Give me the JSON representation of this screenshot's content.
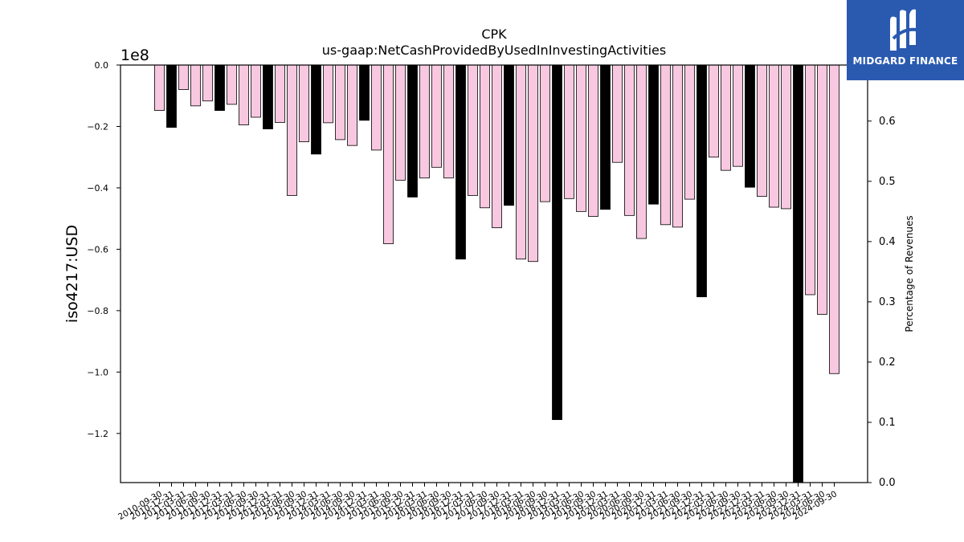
{
  "chart_data": {
    "type": "bar",
    "title": "CPK",
    "subtitle": "us-gaap:NetCashProvidedByUsedInInvestingActivities",
    "ylabel": "iso4217:USD",
    "y_offset_label": "1e8",
    "y2label": "Percentage of Revenues",
    "ylim": [
      -1.36,
      0.0
    ],
    "y2lim": [
      0.0,
      0.693
    ],
    "yticks": [
      "0.0",
      "−0.2",
      "−0.4",
      "−0.6",
      "−0.8",
      "−1.0",
      "−1.2"
    ],
    "y2ticks": [
      "0.0",
      "0.1",
      "0.2",
      "0.3",
      "0.4",
      "0.5",
      "0.6"
    ],
    "grid": false,
    "categories": [
      "2010-09-30",
      "2010-12-31",
      "2011-03-31",
      "2011-06-30",
      "2011-09-30",
      "2011-12-31",
      "2012-03-31",
      "2012-06-30",
      "2012-09-30",
      "2012-12-31",
      "2013-03-31",
      "2013-06-30",
      "2013-09-30",
      "2013-12-31",
      "2014-03-31",
      "2014-06-30",
      "2014-09-30",
      "2014-12-31",
      "2015-03-31",
      "2015-06-30",
      "2015-09-30",
      "2015-12-31",
      "2016-03-31",
      "2016-06-30",
      "2016-09-30",
      "2016-12-31",
      "2017-03-31",
      "2017-06-30",
      "2017-09-30",
      "2017-12-31",
      "2018-03-31",
      "2018-06-30",
      "2018-09-30",
      "2018-12-31",
      "2019-03-31",
      "2019-06-30",
      "2019-09-30",
      "2019-12-31",
      "2020-03-31",
      "2020-06-30",
      "2020-09-30",
      "2020-12-31",
      "2021-03-31",
      "2021-06-30",
      "2021-09-30",
      "2021-12-31",
      "2022-03-31",
      "2022-06-30",
      "2022-09-30",
      "2022-12-31",
      "2023-03-31",
      "2023-06-30",
      "2023-09-30",
      "2023-12-31",
      "2024-03-31",
      "2024-06-30",
      "2024-09-30"
    ],
    "values": [
      -0.148,
      -0.203,
      -0.08,
      -0.133,
      -0.117,
      -0.148,
      -0.128,
      -0.195,
      -0.17,
      -0.208,
      -0.187,
      -0.425,
      -0.25,
      -0.29,
      -0.188,
      -0.243,
      -0.262,
      -0.18,
      -0.277,
      -0.582,
      -0.375,
      -0.43,
      -0.368,
      -0.333,
      -0.368,
      -0.632,
      -0.425,
      -0.465,
      -0.53,
      -0.457,
      -0.632,
      -0.64,
      -0.445,
      -1.155,
      -0.435,
      -0.477,
      -0.493,
      -0.47,
      -0.317,
      -0.49,
      -0.565,
      -0.453,
      -0.52,
      -0.528,
      -0.437,
      -0.755,
      -0.3,
      -0.343,
      -0.33,
      -0.398,
      -0.428,
      -0.463,
      -0.468,
      -1.36,
      -0.748,
      -0.812,
      -1.005
    ],
    "highlight": [
      false,
      true,
      false,
      false,
      false,
      true,
      false,
      false,
      false,
      true,
      false,
      false,
      false,
      true,
      false,
      false,
      false,
      true,
      false,
      false,
      false,
      true,
      false,
      false,
      false,
      true,
      false,
      false,
      false,
      true,
      false,
      false,
      false,
      true,
      false,
      false,
      false,
      true,
      false,
      false,
      false,
      true,
      false,
      false,
      false,
      true,
      false,
      false,
      false,
      true,
      false,
      false,
      false,
      true,
      false,
      false,
      false
    ],
    "colors": {
      "bar": "#f8c8e0",
      "highlight": "#000000",
      "edge": "#000000"
    }
  },
  "logo": {
    "text": "MIDGARD FINANCE",
    "icon": "midgard-logo-icon",
    "color": "#2a5ab0"
  }
}
